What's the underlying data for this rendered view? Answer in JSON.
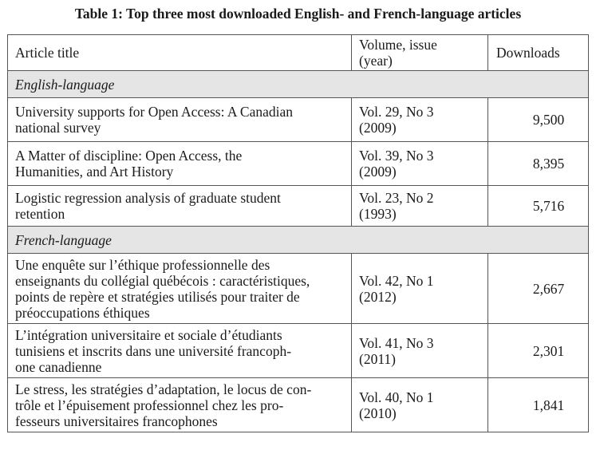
{
  "caption": "Table 1: Top three most downloaded English- and French-language articles",
  "headers": {
    "title": "Article title",
    "volume_line1": "Volume, issue",
    "volume_line2": "(year)",
    "downloads": "Downloads"
  },
  "groups": {
    "english": "English-language",
    "french": "French-language"
  },
  "rows": {
    "en0": {
      "title_lines": [
        "University supports for Open Access: A Canadian",
        "national survey"
      ],
      "vol": "Vol. 29, No 3",
      "year": "(2009)",
      "downloads": "9,500"
    },
    "en1": {
      "title_lines": [
        "A Matter of discipline: Open Access, the",
        "Humanities, and Art History"
      ],
      "vol": "Vol. 39, No 3",
      "year": "(2009)",
      "downloads": "8,395"
    },
    "en2": {
      "title_lines": [
        "Logistic regression analysis of graduate student",
        "retention"
      ],
      "vol": "Vol. 23, No 2",
      "year": "(1993)",
      "downloads": "5,716"
    },
    "fr0": {
      "title_lines": [
        "Une enquête sur l’éthique professionnelle des",
        "enseignants du collégial québécois : caractéristiques,",
        "points de repère et stratégies utilisés pour traiter de",
        "préoccupations éthiques"
      ],
      "vol": "Vol. 42, No 1",
      "year": "(2012)",
      "downloads": "2,667"
    },
    "fr1": {
      "title_lines": [
        "L’intégration universitaire et sociale d’étudiants",
        "tunisiens et inscrits dans une université francoph-",
        "one canadienne"
      ],
      "vol": "Vol. 41, No 3",
      "year": "(2011)",
      "downloads": "2,301"
    },
    "fr2": {
      "title_lines": [
        "Le stress, les stratégies d’adaptation, le locus de con-",
        "trôle et l’épuisement professionnel chez les pro-",
        "fesseurs universitaires francophones"
      ],
      "vol": "Vol. 40, No 1",
      "year": "(2010)",
      "downloads": "1,841"
    }
  }
}
